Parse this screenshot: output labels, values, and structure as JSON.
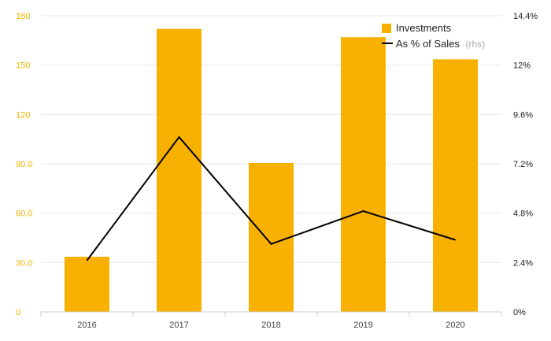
{
  "chart_data": {
    "type": "bar",
    "categories": [
      "2016",
      "2017",
      "2018",
      "2019",
      "2020"
    ],
    "series": [
      {
        "name": "Investments",
        "type": "bar",
        "axis": "left",
        "color": "#f8b100",
        "values": [
          33.5,
          172.0,
          90.5,
          167.0,
          153.5
        ]
      },
      {
        "name": "As % of Sales",
        "suffix": "(rhs)",
        "type": "line",
        "axis": "right",
        "color": "#000000",
        "values": [
          2.5,
          8.5,
          3.3,
          4.9,
          3.5
        ]
      }
    ],
    "yleft": {
      "min": 0,
      "max": 180,
      "ticks": [
        0,
        30,
        60,
        90,
        120,
        150,
        180
      ],
      "tick_labels": [
        "0",
        "30.0",
        "60.0",
        "90.0",
        "120",
        "150",
        "180"
      ]
    },
    "yright": {
      "min": 0,
      "max": 14.4,
      "ticks": [
        0,
        2.4,
        4.8,
        7.2,
        9.6,
        12,
        14.4
      ],
      "tick_labels": [
        "0%",
        "2.4%",
        "4.8%",
        "7.2%",
        "9.6%",
        "12%",
        "14.4%"
      ]
    },
    "grid": true,
    "legend": "top-right"
  }
}
